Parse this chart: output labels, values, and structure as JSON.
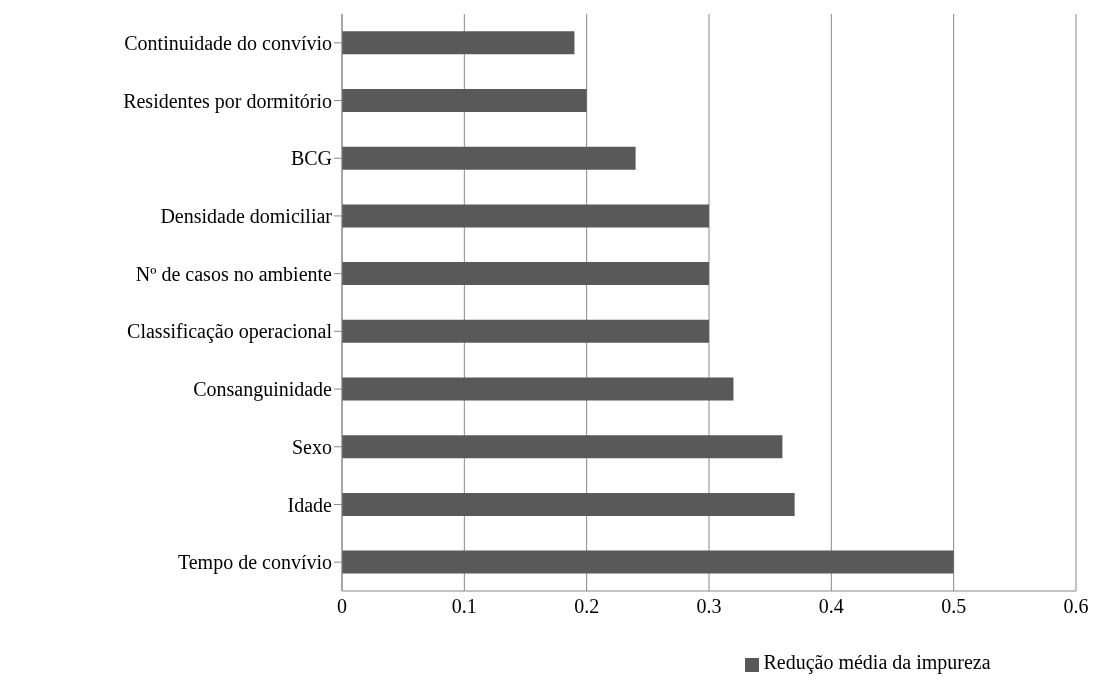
{
  "chart_data": {
    "type": "bar",
    "orientation": "horizontal",
    "categories": [
      "Continuidade do convívio",
      "Residentes por dormitório",
      "BCG",
      "Densidade domiciliar",
      "Nº de casos no ambiente",
      "Classificação operacional",
      "Consanguinidade",
      "Sexo",
      "Idade",
      "Tempo de convívio"
    ],
    "series": [
      {
        "name": "Redução média da impureza",
        "color": "#595959",
        "values": [
          0.19,
          0.2,
          0.24,
          0.3,
          0.3,
          0.3,
          0.32,
          0.36,
          0.37,
          0.5
        ]
      }
    ],
    "xlim": [
      0,
      0.6
    ],
    "xticks": [
      0,
      0.1,
      0.2,
      0.3,
      0.4,
      0.5,
      0.6
    ],
    "grid": "x",
    "legend": "bottom"
  }
}
